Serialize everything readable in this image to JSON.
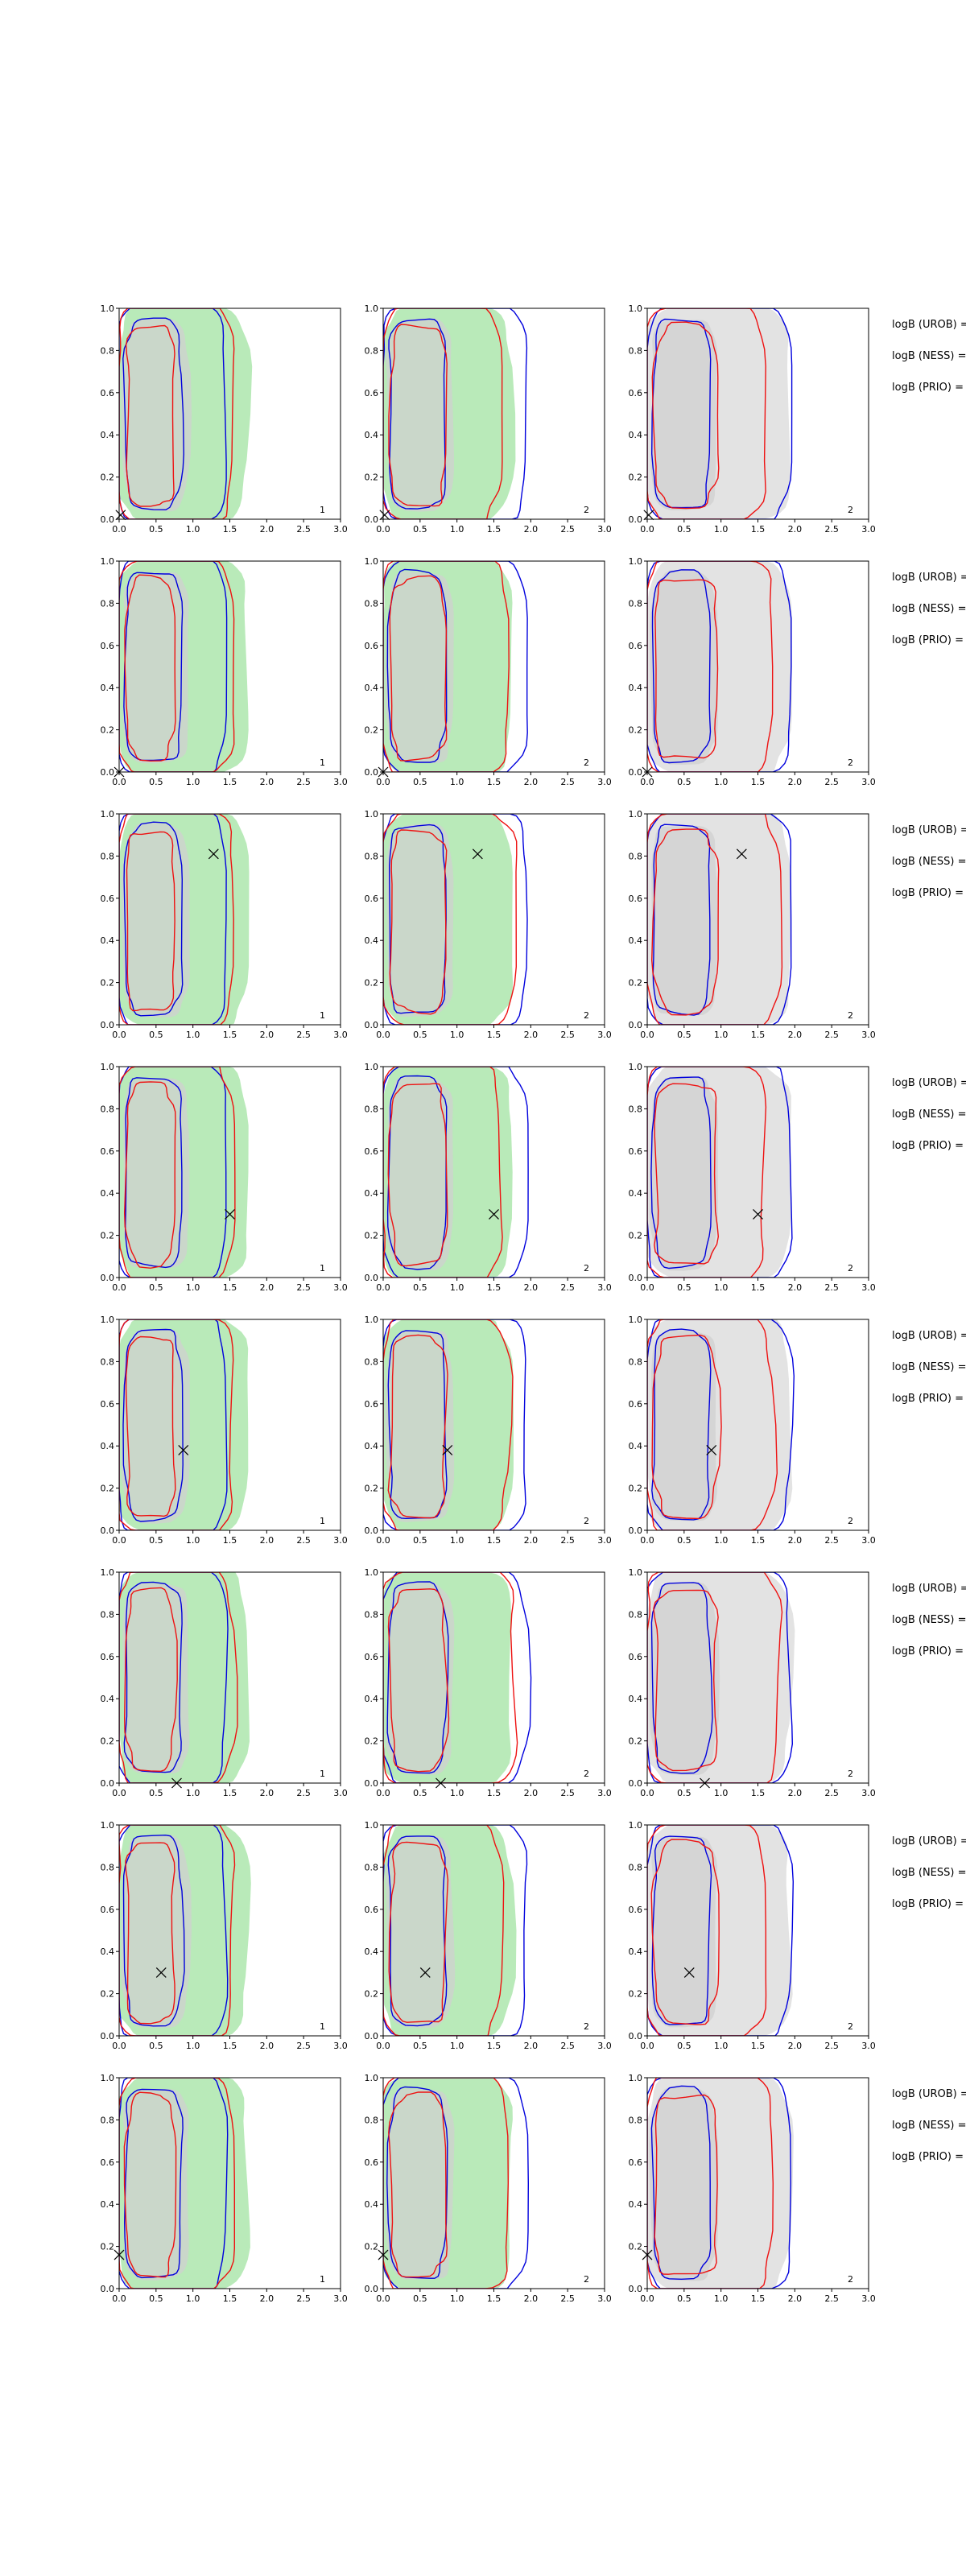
{
  "chart_data": {
    "type": "contour-grid",
    "xlim": [
      0,
      3
    ],
    "ylim": [
      0,
      1
    ],
    "xticks": [
      "0.0",
      "0.5",
      "1.0",
      "1.5",
      "2.0",
      "2.5",
      "3.0"
    ],
    "yticks": [
      "0.0",
      "0.2",
      "0.4",
      "0.6",
      "0.8",
      "1.0"
    ],
    "column_labels": [
      "1",
      "2",
      "2"
    ],
    "column_fill_colors": [
      "#b9eab9",
      "#b9eab9",
      "#e3e3e3"
    ],
    "colors": {
      "blue": "#0000dd",
      "red": "#ee1111",
      "inner": "#d0d0d0"
    },
    "row_labels": [
      "logB (UROB) =",
      "logB (NESS) =",
      "logB (PRIO) ="
    ],
    "rows": [
      {
        "marker": [
          0.02,
          0.02
        ]
      },
      {
        "marker": [
          0.0,
          0.0
        ]
      },
      {
        "marker": [
          1.28,
          0.81
        ]
      },
      {
        "marker": [
          1.5,
          0.3
        ]
      },
      {
        "marker": [
          0.87,
          0.38
        ]
      },
      {
        "marker": [
          0.78,
          0.0
        ]
      },
      {
        "marker": [
          0.57,
          0.3
        ]
      },
      {
        "marker": [
          0.0,
          0.16
        ]
      }
    ]
  }
}
